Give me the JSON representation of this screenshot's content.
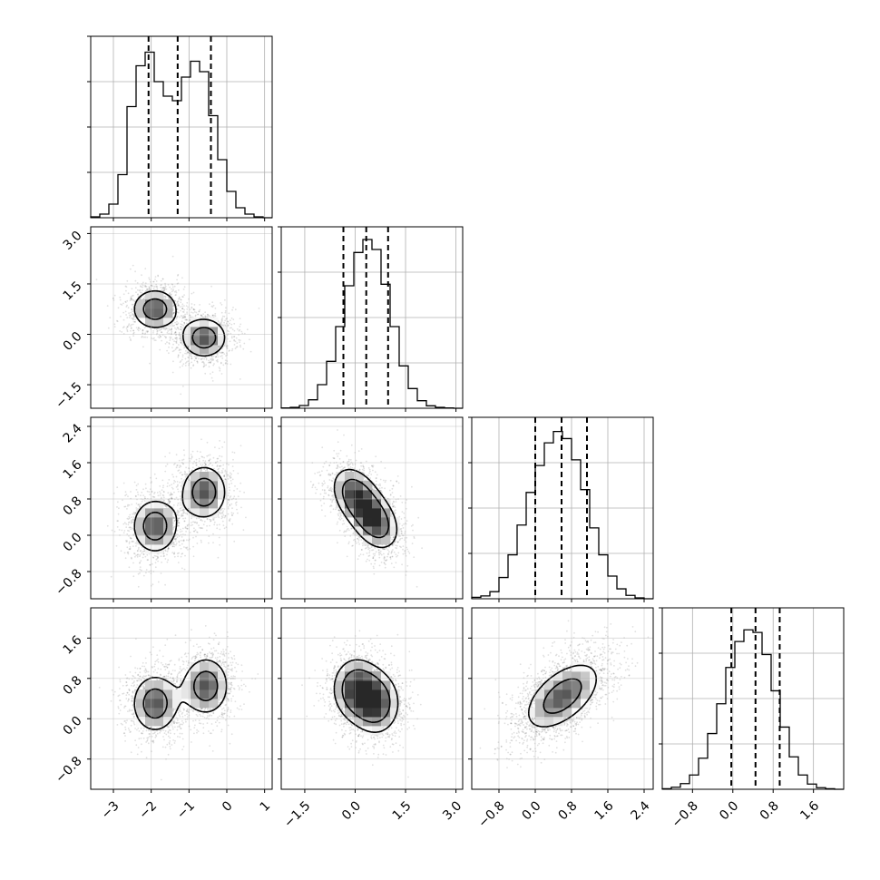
{
  "chart_data": {
    "type": "corner",
    "description": "Corner plot of a 4-parameter posterior sample: 1D marginal histograms on the diagonal, 2D density (scatter + shaded bins + contours) below the diagonal",
    "parameters": [
      {
        "range": [
          -3.6,
          1.2
        ],
        "ticks": [
          -3,
          -2,
          -1,
          0,
          1
        ],
        "tick_labels": [
          "−3",
          "−2",
          "−1",
          "0",
          "1"
        ],
        "quantiles": [
          -2.07,
          -1.3,
          -0.42
        ],
        "histogram": {
          "edges": [
            -3.6,
            -3.36,
            -3.12,
            -2.88,
            -2.64,
            -2.4,
            -2.16,
            -1.92,
            -1.68,
            -1.44,
            -1.2,
            -0.96,
            -0.72,
            -0.48,
            -0.24,
            0.0,
            0.24,
            0.48,
            0.72,
            0.96,
            1.2
          ],
          "counts": [
            2,
            8,
            30,
            95,
            245,
            335,
            365,
            300,
            268,
            258,
            310,
            345,
            322,
            225,
            128,
            58,
            22,
            8,
            2,
            0
          ],
          "ylim": [
            0,
            400
          ],
          "yticks": [
            100,
            200,
            300,
            400
          ]
        },
        "modes": [
          {
            "mean": -1.9,
            "sd": 0.48
          },
          {
            "mean": -0.6,
            "sd": 0.48
          }
        ]
      },
      {
        "range": [
          -2.2,
          3.2
        ],
        "ticks": [
          -1.5,
          0.0,
          1.5,
          3.0
        ],
        "tick_labels": [
          "−1.5",
          "0.0",
          "1.5",
          "3.0"
        ],
        "quantiles": [
          -0.35,
          0.33,
          0.98
        ],
        "histogram": {
          "edges": [
            -2.2,
            -1.93,
            -1.66,
            -1.39,
            -1.12,
            -0.85,
            -0.58,
            -0.31,
            -0.04,
            0.23,
            0.5,
            0.77,
            1.04,
            1.31,
            1.58,
            1.85,
            2.12,
            2.39,
            2.66,
            2.93,
            3.2
          ],
          "counts": [
            1,
            3,
            9,
            28,
            78,
            155,
            270,
            405,
            515,
            558,
            525,
            410,
            270,
            140,
            65,
            25,
            8,
            3,
            1,
            0
          ],
          "ylim": [
            0,
            600
          ],
          "yticks": [
            150,
            300,
            450,
            600
          ]
        }
      },
      {
        "range": [
          -1.4,
          2.6
        ],
        "ticks": [
          -0.8,
          0.0,
          0.8,
          1.6,
          2.4
        ],
        "tick_labels": [
          "−0.8",
          "0.0",
          "0.8",
          "1.6",
          "2.4"
        ],
        "quantiles": [
          0.0,
          0.58,
          1.14
        ],
        "histogram": {
          "edges": [
            -1.4,
            -1.2,
            -1.0,
            -0.8,
            -0.6,
            -0.4,
            -0.2,
            0.0,
            0.2,
            0.4,
            0.6,
            0.8,
            1.0,
            1.2,
            1.4,
            1.6,
            1.8,
            2.0,
            2.2,
            2.4,
            2.6
          ],
          "counts": [
            5,
            10,
            25,
            75,
            155,
            260,
            375,
            470,
            550,
            590,
            565,
            490,
            385,
            250,
            155,
            80,
            35,
            12,
            3,
            0
          ],
          "ylim": [
            0,
            640
          ],
          "yticks": [
            160,
            320,
            480,
            640
          ]
        }
      },
      {
        "range": [
          -1.4,
          2.2
        ],
        "ticks": [
          -0.8,
          0.0,
          0.8,
          1.6
        ],
        "tick_labels": [
          "−0.8",
          "0.0",
          "0.8",
          "1.6"
        ],
        "quantiles": [
          -0.03,
          0.45,
          0.93
        ],
        "histogram": {
          "edges": [
            -1.4,
            -1.22,
            -1.04,
            -0.86,
            -0.68,
            -0.5,
            -0.32,
            -0.14,
            0.04,
            0.22,
            0.4,
            0.58,
            0.76,
            0.94,
            1.12,
            1.3,
            1.48,
            1.66,
            1.84,
            2.02,
            2.2
          ],
          "counts": [
            2,
            8,
            22,
            55,
            120,
            215,
            330,
            470,
            570,
            615,
            605,
            520,
            380,
            240,
            125,
            55,
            20,
            6,
            2,
            0
          ],
          "ylim": [
            0,
            700
          ],
          "yticks": [
            175,
            350,
            525,
            700
          ]
        }
      }
    ],
    "pairs": [
      {
        "row": 1,
        "col": 0,
        "modes": [
          {
            "mx": -1.9,
            "my": 0.75,
            "sx": 0.4,
            "sy": 0.4,
            "rho": 0.0
          },
          {
            "mx": -0.6,
            "my": -0.1,
            "sx": 0.4,
            "sy": 0.4,
            "rho": 0.0
          }
        ]
      },
      {
        "row": 2,
        "col": 0,
        "modes": [
          {
            "mx": -1.9,
            "my": 0.2,
            "sx": 0.4,
            "sy": 0.4,
            "rho": 0.0
          },
          {
            "mx": -0.6,
            "my": 0.95,
            "sx": 0.4,
            "sy": 0.4,
            "rho": 0.0
          }
        ]
      },
      {
        "row": 2,
        "col": 1,
        "modes": [
          {
            "mx": 0.0,
            "my": 0.9,
            "sx": 0.45,
            "sy": 0.4,
            "rho": -0.3
          },
          {
            "mx": 0.62,
            "my": 0.28,
            "sx": 0.45,
            "sy": 0.4,
            "rho": -0.3
          }
        ]
      },
      {
        "row": 3,
        "col": 0,
        "modes": [
          {
            "mx": -1.9,
            "my": 0.3,
            "sx": 0.4,
            "sy": 0.38,
            "rho": 0.0
          },
          {
            "mx": -0.55,
            "my": 0.65,
            "sx": 0.4,
            "sy": 0.38,
            "rho": 0.0
          }
        ]
      },
      {
        "row": 3,
        "col": 1,
        "modes": [
          {
            "mx": 0.0,
            "my": 0.6,
            "sx": 0.45,
            "sy": 0.4,
            "rho": 0.0
          },
          {
            "mx": 0.65,
            "my": 0.3,
            "sx": 0.45,
            "sy": 0.4,
            "rho": 0.0
          }
        ]
      },
      {
        "row": 3,
        "col": 2,
        "modes": [
          {
            "mx": 0.6,
            "my": 0.45,
            "sx": 0.55,
            "sy": 0.45,
            "rho": 0.55
          }
        ]
      }
    ],
    "contour_levels": [
      0.4,
      0.75,
      1.5,
      2.3
    ],
    "grid": true
  }
}
